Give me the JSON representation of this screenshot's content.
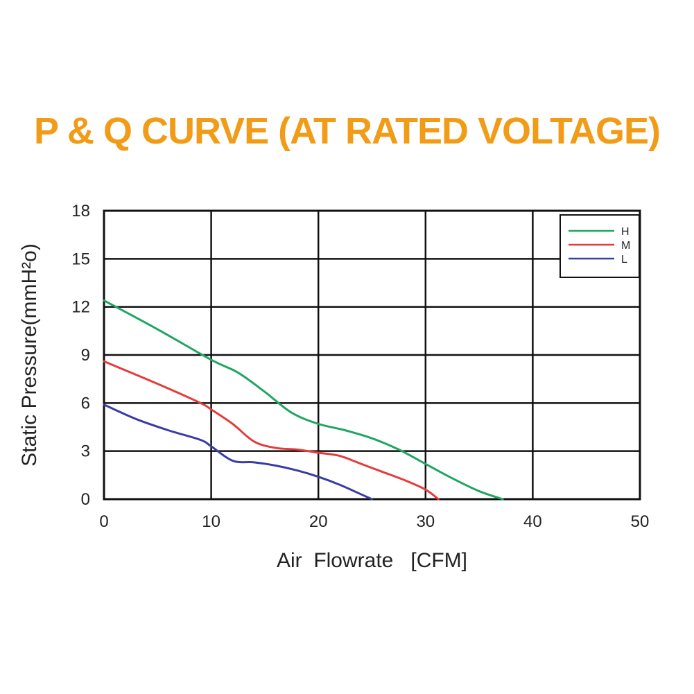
{
  "colors": {
    "title": "#f29b17",
    "grid": "#111111",
    "H": "#1fa564",
    "M": "#e53b3b",
    "L": "#3a3ca3"
  },
  "chart_data": {
    "type": "line",
    "title": "P & Q CURVE (AT RATED VOLTAGE)",
    "xlabel": "Air  Flowrate   [CFM]",
    "ylabel": "Static Pressure(mmH²o)",
    "xlim": [
      0,
      50
    ],
    "ylim": [
      0,
      18
    ],
    "xticks": [
      0,
      10,
      20,
      30,
      40,
      50
    ],
    "yticks": [
      0,
      3,
      6,
      9,
      12,
      15,
      18
    ],
    "grid": true,
    "legend_position": "top-right",
    "series": [
      {
        "name": "H",
        "points": [
          [
            0,
            12.4
          ],
          [
            5,
            10.6
          ],
          [
            10,
            8.7
          ],
          [
            12.5,
            7.9
          ],
          [
            15,
            6.7
          ],
          [
            17.5,
            5.4
          ],
          [
            20,
            4.7
          ],
          [
            22.5,
            4.3
          ],
          [
            25,
            3.8
          ],
          [
            27.5,
            3.1
          ],
          [
            30,
            2.2
          ],
          [
            32.5,
            1.3
          ],
          [
            35,
            0.5
          ],
          [
            37.2,
            0.0
          ]
        ]
      },
      {
        "name": "M",
        "points": [
          [
            0,
            8.6
          ],
          [
            5,
            7.2
          ],
          [
            9,
            6.0
          ],
          [
            10,
            5.6
          ],
          [
            12,
            4.7
          ],
          [
            14,
            3.6
          ],
          [
            16,
            3.2
          ],
          [
            18,
            3.1
          ],
          [
            20,
            2.9
          ],
          [
            22,
            2.7
          ],
          [
            24,
            2.2
          ],
          [
            26,
            1.7
          ],
          [
            28,
            1.2
          ],
          [
            30,
            0.6
          ],
          [
            31.2,
            0.0
          ]
        ]
      },
      {
        "name": "L",
        "points": [
          [
            0,
            5.9
          ],
          [
            3,
            5.0
          ],
          [
            6,
            4.3
          ],
          [
            9,
            3.7
          ],
          [
            10,
            3.3
          ],
          [
            12,
            2.4
          ],
          [
            14,
            2.3
          ],
          [
            16,
            2.1
          ],
          [
            18,
            1.8
          ],
          [
            20,
            1.4
          ],
          [
            22,
            0.9
          ],
          [
            24,
            0.3
          ],
          [
            25,
            0.0
          ]
        ]
      }
    ]
  }
}
